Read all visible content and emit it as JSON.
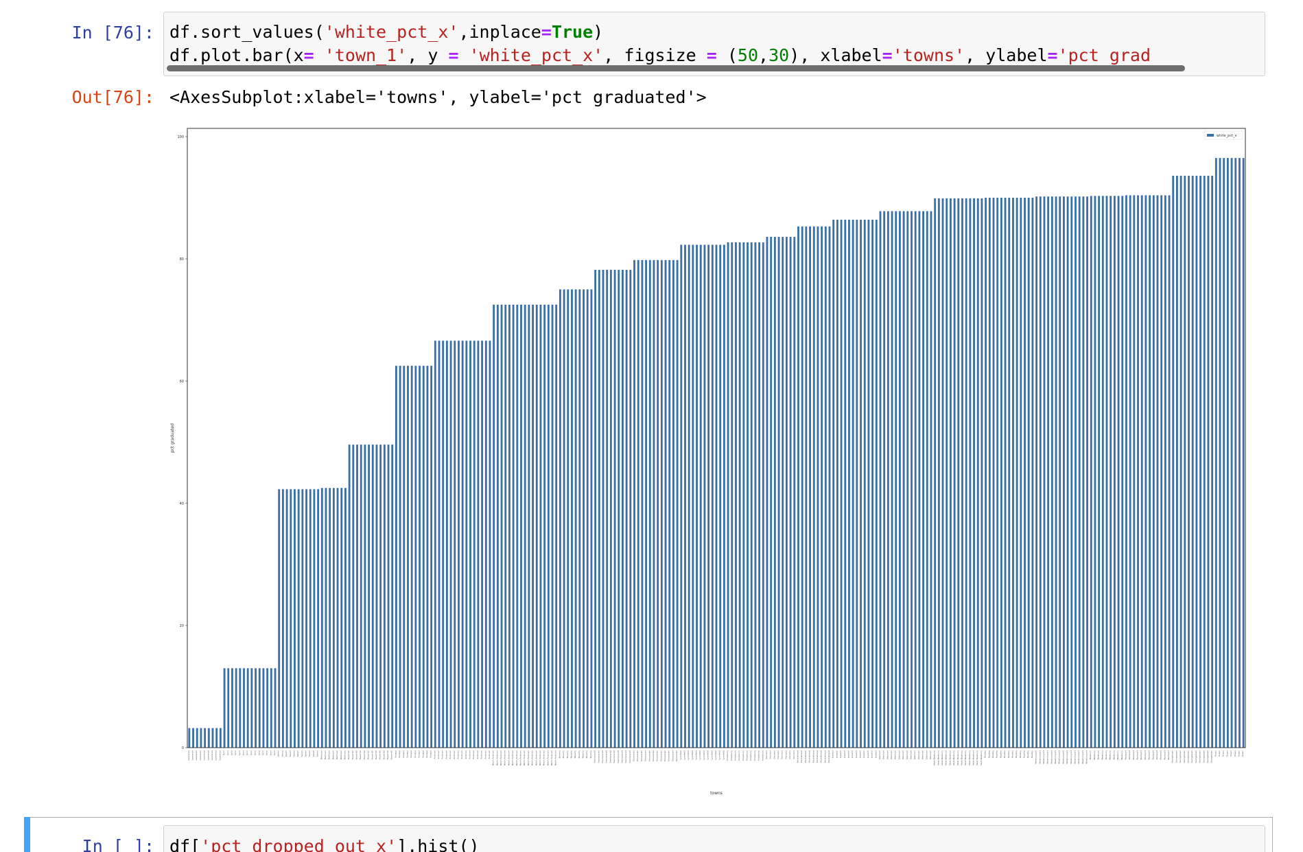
{
  "cells": [
    {
      "prompt": "In [76]:",
      "code": {
        "line1": {
          "p1": "df.sort_values(",
          "s1": "'white_pct_x'",
          "p2": ",inplace",
          "o1": "=",
          "k1": "True",
          "p3": ")"
        },
        "line2": {
          "p1": "df.plot.bar(x",
          "o1": "=",
          "p2": " ",
          "s1": "'town_1'",
          "p3": ", y ",
          "o2": "=",
          "p4": " ",
          "s2": "'white_pct_x'",
          "p5": ", figsize ",
          "o3": "=",
          "p6": " (",
          "n1": "50",
          "p7": ",",
          "n2": "30",
          "p8": "), xlabel",
          "o4": "=",
          "s3": "'towns'",
          "p9": ", ylabel",
          "o5": "=",
          "s4": "'pct grad"
        }
      },
      "out_prompt": "Out[76]:",
      "out_text": "<AxesSubplot:xlabel='towns', ylabel='pct graduated'>"
    },
    {
      "prompt": "In [ ]:",
      "code": {
        "p1": "df[",
        "s1": "'pct_dropped_out_x'",
        "p2": "].hist()"
      }
    }
  ],
  "chart_data": {
    "type": "bar",
    "xlabel": "towns",
    "ylabel": "pct graduated",
    "ylim": [
      0,
      100
    ],
    "yticks": [
      0,
      20,
      40,
      60,
      80,
      100
    ],
    "legend": {
      "position": "top-right",
      "entries": [
        "white_pct_x"
      ]
    },
    "color": "#3a6fa8",
    "series": [
      {
        "name": "white_pct_x",
        "groups": [
          {
            "count": 9,
            "value": 3.2,
            "label": "Lawrence"
          },
          {
            "count": 14,
            "value": 13.0,
            "label": "Lynn"
          },
          {
            "count": 11,
            "value": 42.3,
            "label": "Salem"
          },
          {
            "count": 7,
            "value": 42.5,
            "label": "Methuen"
          },
          {
            "count": 12,
            "value": 49.6,
            "label": "Haverhill"
          },
          {
            "count": 10,
            "value": 62.5,
            "label": "Saugus"
          },
          {
            "count": 15,
            "value": 66.6,
            "label": "Andover"
          },
          {
            "count": 17,
            "value": 72.5,
            "label": "North Andover"
          },
          {
            "count": 9,
            "value": 75.0,
            "label": "Beverly"
          },
          {
            "count": 10,
            "value": 78.2,
            "label": "Swampscott"
          },
          {
            "count": 12,
            "value": 79.8,
            "label": "Gloucester"
          },
          {
            "count": 12,
            "value": 82.3,
            "label": "Lynnfield"
          },
          {
            "count": 10,
            "value": 82.7,
            "label": "Amesbury"
          },
          {
            "count": 8,
            "value": 83.6,
            "label": "Danvers"
          },
          {
            "count": 9,
            "value": 85.3,
            "label": "Marblehead"
          },
          {
            "count": 12,
            "value": 86.4,
            "label": "Ipswich"
          },
          {
            "count": 14,
            "value": 87.8,
            "label": "Wenham"
          },
          {
            "count": 13,
            "value": 89.9,
            "label": "West Newbury"
          },
          {
            "count": 13,
            "value": 90.0,
            "label": "Rowley"
          },
          {
            "count": 14,
            "value": 90.2,
            "label": "Newburyport"
          },
          {
            "count": 9,
            "value": 90.3,
            "label": "Newbury"
          },
          {
            "count": 12,
            "value": 90.4,
            "label": "Rockport"
          },
          {
            "count": 11,
            "value": 93.6,
            "label": "Georgetown"
          },
          {
            "count": 8,
            "value": 96.5,
            "label": "Essex"
          }
        ]
      }
    ]
  }
}
